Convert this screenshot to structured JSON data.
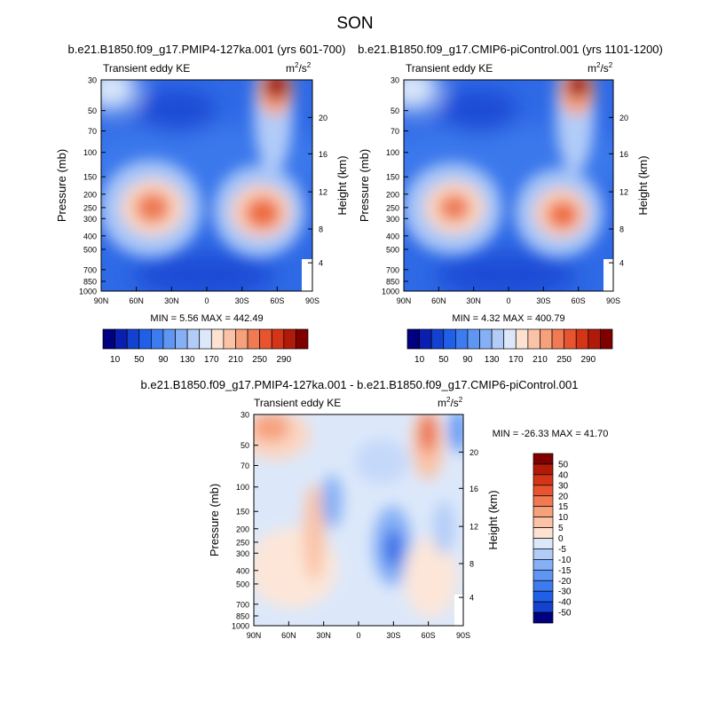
{
  "figure": {
    "title": "SON"
  },
  "chart_data": [
    {
      "type": "heatmap",
      "panel": "top-left",
      "case_title": "b.e21.B1850.f09_g17.PMIP4-127ka.001 (yrs 601-700)",
      "left_string": "Transient eddy KE",
      "units_base": "m",
      "units_exp1": "2",
      "units_den": "/s",
      "units_exp2": "2",
      "xlabel": "",
      "ylabel": "Pressure (mb)",
      "y2label": "Height (km)",
      "x_ticks": [
        "90N",
        "60N",
        "30N",
        "0",
        "30S",
        "60S",
        "90S"
      ],
      "y_ticks": [
        30,
        50,
        70,
        100,
        150,
        200,
        250,
        300,
        400,
        500,
        700,
        850,
        1000
      ],
      "y2_ticks": [
        20,
        16,
        12,
        8,
        4
      ],
      "y_scale": "log",
      "min_max_text": "MIN =   5.56  MAX = 442.49",
      "features": [
        {
          "lat": -55,
          "p": 40,
          "value": 400
        },
        {
          "lat": 45,
          "p": 240,
          "value": 290
        },
        {
          "lat": -40,
          "p": 260,
          "value": 260
        },
        {
          "lat": -60,
          "p": 1000,
          "value": 5.56
        }
      ]
    },
    {
      "type": "heatmap",
      "panel": "top-right",
      "case_title": "b.e21.B1850.f09_g17.CMIP6-piControl.001 (yrs 1101-1200)",
      "left_string": "Transient eddy KE",
      "units_base": "m",
      "units_exp1": "2",
      "units_den": "/s",
      "units_exp2": "2",
      "xlabel": "",
      "ylabel": "Pressure (mb)",
      "y2label": "Height (km)",
      "x_ticks": [
        "90N",
        "60N",
        "30N",
        "0",
        "30S",
        "60S",
        "90S"
      ],
      "y_ticks": [
        30,
        50,
        70,
        100,
        150,
        200,
        250,
        300,
        400,
        500,
        700,
        850,
        1000
      ],
      "y2_ticks": [
        20,
        16,
        12,
        8,
        4
      ],
      "y_scale": "log",
      "min_max_text": "MIN =   4.32  MAX = 400.79",
      "features": [
        {
          "lat": -52,
          "p": 40,
          "value": 380
        },
        {
          "lat": 45,
          "p": 240,
          "value": 270
        },
        {
          "lat": -38,
          "p": 260,
          "value": 250
        },
        {
          "lat": -60,
          "p": 1000,
          "value": 4.32
        }
      ]
    },
    {
      "type": "heatmap",
      "panel": "bottom",
      "case_title": "b.e21.B1850.f09_g17.PMIP4-127ka.001 - b.e21.B1850.f09_g17.CMIP6-piControl.001",
      "left_string": "Transient eddy KE",
      "units_base": "m",
      "units_exp1": "2",
      "units_den": "/s",
      "units_exp2": "2",
      "xlabel": "",
      "ylabel": "Pressure (mb)",
      "y2label": "Height (km)",
      "x_ticks": [
        "90N",
        "60N",
        "30N",
        "0",
        "30S",
        "60S",
        "90S"
      ],
      "y_ticks": [
        30,
        50,
        70,
        100,
        150,
        200,
        250,
        300,
        400,
        500,
        700,
        850,
        1000
      ],
      "y2_ticks": [
        20,
        16,
        12,
        8,
        4
      ],
      "y_scale": "log",
      "min_max_text": "MIN = -26.33  MAX =  41.70",
      "features": [
        {
          "lat": -60,
          "p": 35,
          "value": 41.7
        },
        {
          "lat": 90,
          "p": 35,
          "value": 30
        },
        {
          "lat": -30,
          "p": 280,
          "value": -26.33
        },
        {
          "lat": 35,
          "p": 250,
          "value": 15
        }
      ]
    }
  ],
  "colorbar_abs": {
    "labels": [
      "10",
      "50",
      "90",
      "130",
      "170",
      "210",
      "250",
      "290"
    ],
    "colors": [
      "#000080",
      "#0a1fb0",
      "#1442d0",
      "#2060e8",
      "#3d7cf0",
      "#5f96f4",
      "#86b0f6",
      "#b2ccf8",
      "#dce8fa",
      "#fde2d2",
      "#fac2a6",
      "#f6a07c",
      "#f07a52",
      "#e85430",
      "#d43418",
      "#b01a08",
      "#800000"
    ]
  },
  "colorbar_diff": {
    "labels": [
      "50",
      "40",
      "30",
      "20",
      "15",
      "10",
      "5",
      "0",
      "-5",
      "-10",
      "-15",
      "-20",
      "-30",
      "-40",
      "-50"
    ],
    "colors": [
      "#800000",
      "#b01a08",
      "#d43418",
      "#e85430",
      "#f07a52",
      "#f6a07c",
      "#fac2a6",
      "#fde2d2",
      "#dce8fa",
      "#b2ccf8",
      "#86b0f6",
      "#5f96f4",
      "#3d7cf0",
      "#2060e8",
      "#1442d0",
      "#000080"
    ]
  }
}
